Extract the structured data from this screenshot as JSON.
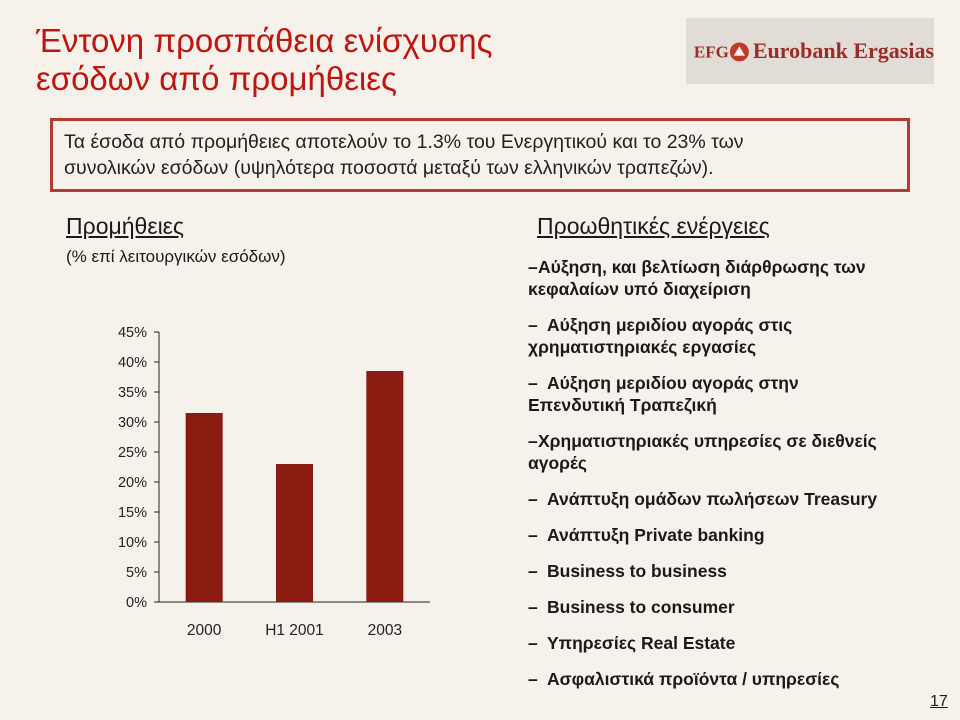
{
  "header": {
    "title_line1": "Έντονη προσπάθεια ενίσχυσης",
    "title_line2": "εσόδων από προμήθειες",
    "logo_text": "Eurobank Ergasias",
    "logo_mark_text": "EFG"
  },
  "intro": {
    "line1": "Τα έσοδα από προμήθειες αποτελούν το 1.3% του Ενεργητικού και το 23% των",
    "line2": "συνολικών εσόδων (υψηλότερα ποσοστά μεταξύ των ελληνικών τραπεζών)."
  },
  "left": {
    "title": "Προμήθειες",
    "subtitle": "(% επί λειτουργικών εσόδων)"
  },
  "right": {
    "title": "Προωθητικές ενέργειες",
    "items": [
      {
        "dash": "–",
        "line1": "Αύξηση, και βελτίωση διάρθρωσης των",
        "line2": "κεφαλαίων υπό διαχείριση"
      },
      {
        "dash": "–",
        "line1": "Αύξηση μεριδίου αγοράς στις",
        "line2": "χρηματιστηριακές εργασίες"
      },
      {
        "dash": "–",
        "line1": "Αύξηση μεριδίου αγοράς στην",
        "line2": "Επενδυτική Τραπεζική"
      },
      {
        "dash": "–",
        "line1": "Χρηματιστηριακές υπηρεσίες σε διεθνείς",
        "line2": "αγορές"
      },
      {
        "dash": "–",
        "line1": "Ανάπτυξη ομάδων πωλήσεων Treasury",
        "line2": ""
      },
      {
        "dash": "–",
        "line1": "Ανάπτυξη Private banking",
        "line2": ""
      },
      {
        "dash": "–",
        "line1": "Business to business",
        "line2": ""
      },
      {
        "dash": "–",
        "line1": "Business to consumer",
        "line2": ""
      },
      {
        "dash": "–",
        "line1": "Υπηρεσίες Real Estate",
        "line2": ""
      },
      {
        "dash": "–",
        "line1": "Ασφαλιστικά προϊόντα / υπηρεσίες",
        "line2": ""
      }
    ]
  },
  "page_number": "17",
  "colors": {
    "title": "#c0150f",
    "bar": "#8b1a10",
    "box_border": "#b33c35"
  },
  "chart_data": {
    "type": "bar",
    "categories": [
      "2000",
      "H1 2001",
      "2003"
    ],
    "values": [
      31.5,
      23,
      38.5
    ],
    "ylim": [
      0,
      45
    ],
    "yticks": [
      "0%",
      "5%",
      "10%",
      "15%",
      "20%",
      "25%",
      "30%",
      "35%",
      "40%",
      "45%"
    ],
    "grid": false,
    "legend": "none"
  }
}
